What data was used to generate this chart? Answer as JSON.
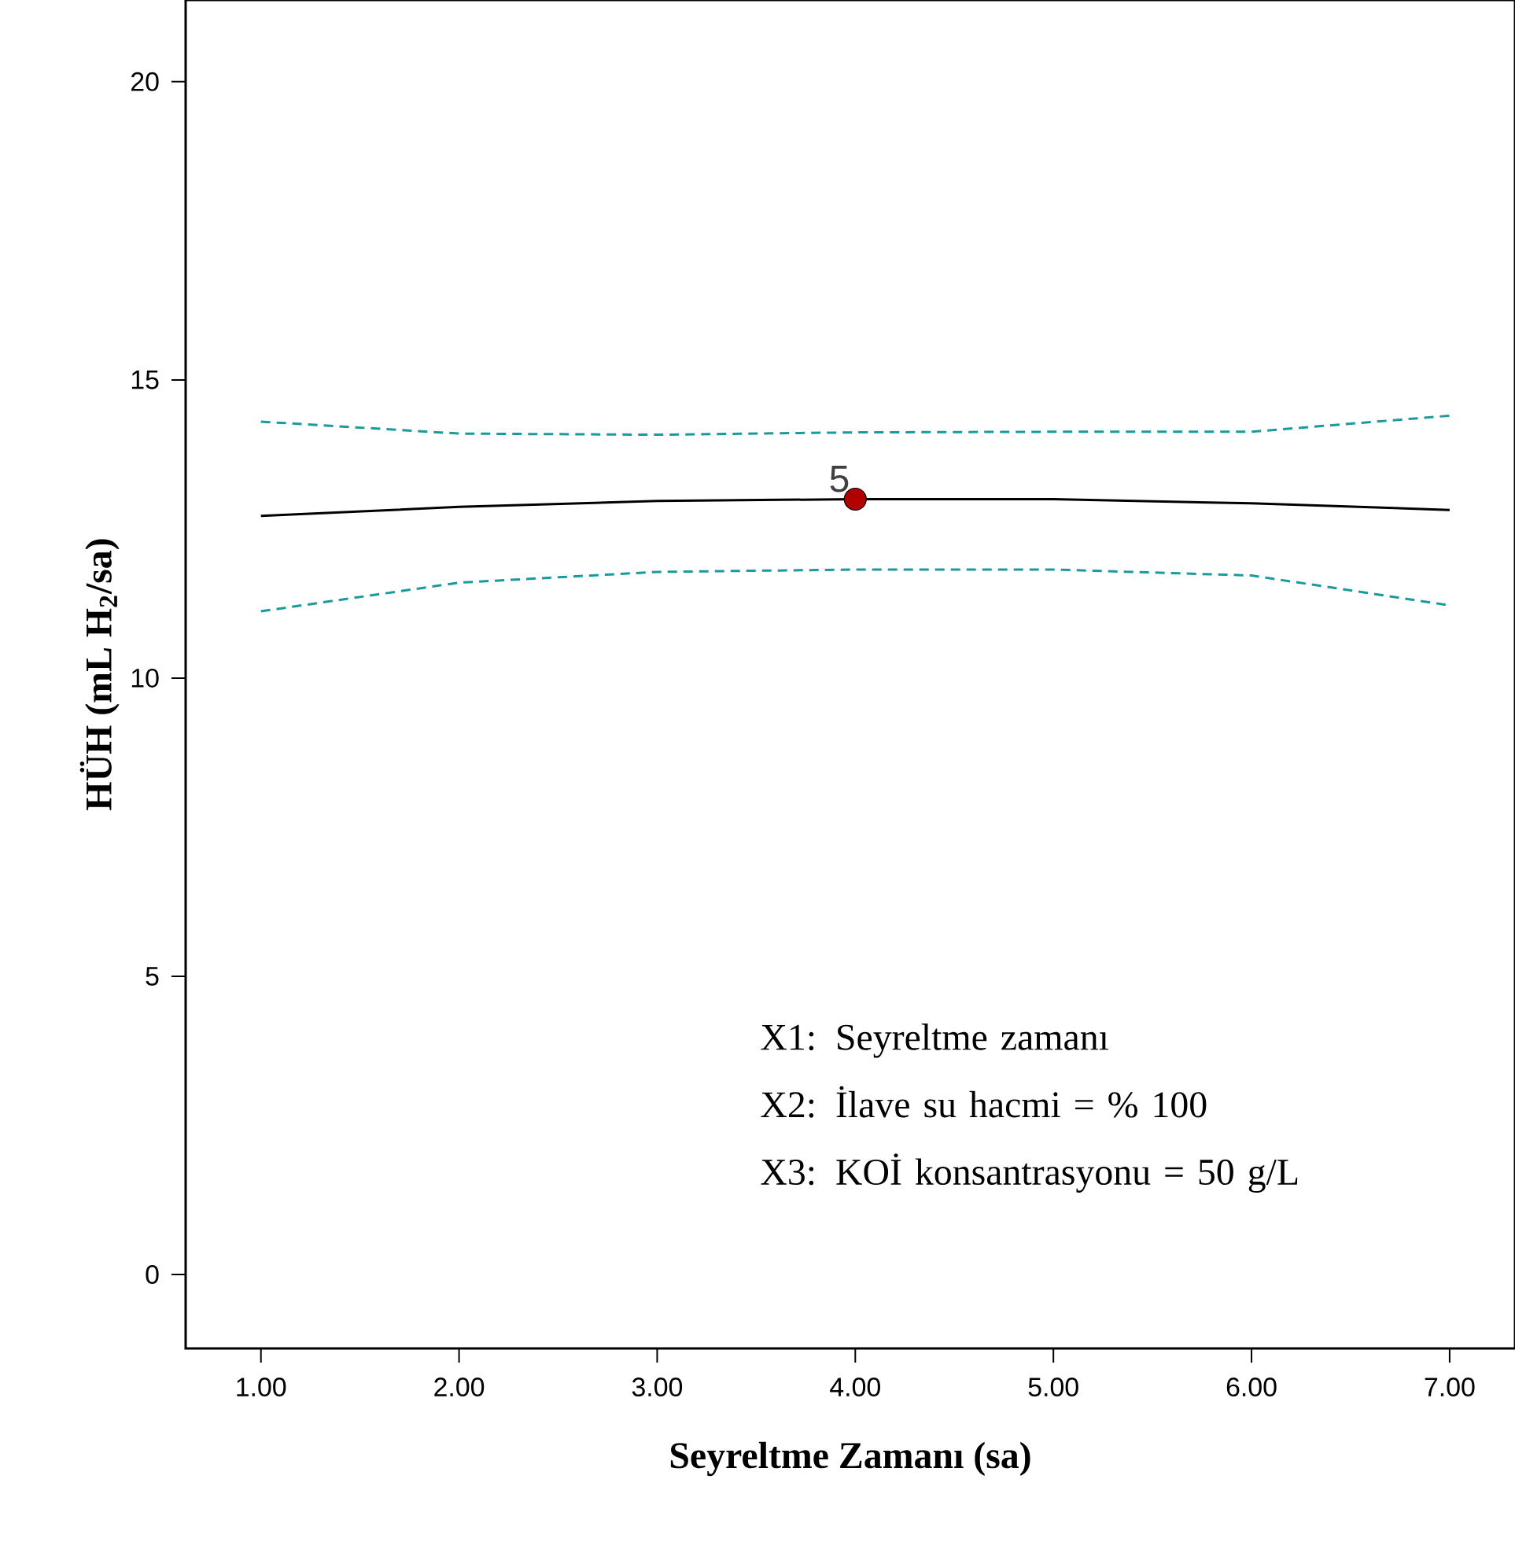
{
  "chart_data": {
    "type": "line",
    "xlabel": "Seyreltme Zamanı (sa)",
    "ylabel": "HÜH (mL H$_{2}$/sa)",
    "x": [
      1,
      2,
      3,
      4,
      5,
      6,
      7
    ],
    "series": [
      {
        "color": "#000000",
        "line_style": "solid",
        "marker": "none",
        "values": [
          12.72,
          12.87,
          12.97,
          13.0,
          13.0,
          12.93,
          12.82
        ]
      },
      {
        "color": "#1a9a9a",
        "line_style": "dashed",
        "marker": "none",
        "values": [
          14.3,
          14.1,
          14.08,
          14.12,
          14.13,
          14.13,
          14.4
        ]
      },
      {
        "color": "#1a9a9a",
        "line_style": "dashed",
        "marker": "none",
        "values": [
          11.12,
          11.6,
          11.78,
          11.82,
          11.82,
          11.72,
          11.22
        ]
      },
      {
        "type": "scatter",
        "color": "#b00000",
        "marker": "circle",
        "x": [
          4
        ],
        "values": [
          13.0
        ]
      }
    ],
    "xlim": [
      0.62,
      7.33
    ],
    "ylim": [
      -1.24,
      21.37
    ],
    "xticks": [
      {
        "value": 1,
        "label": "1.00"
      },
      {
        "value": 2,
        "label": "2.00"
      },
      {
        "value": 3,
        "label": "3.00"
      },
      {
        "value": 4,
        "label": "4.00"
      },
      {
        "value": 5,
        "label": "5.00"
      },
      {
        "value": 6,
        "label": "6.00"
      },
      {
        "value": 7,
        "label": "7.00"
      }
    ],
    "yticks": [
      0,
      5,
      10,
      15,
      20
    ],
    "grid": false,
    "annotations": [
      {
        "text": "5",
        "x": 4,
        "y": 13.0
      },
      "X1: Seyreltme zamanı",
      "X2: İlave su hacmi = % 100",
      "X3: KOİ konsantrasyonu = 50 g/L"
    ]
  }
}
